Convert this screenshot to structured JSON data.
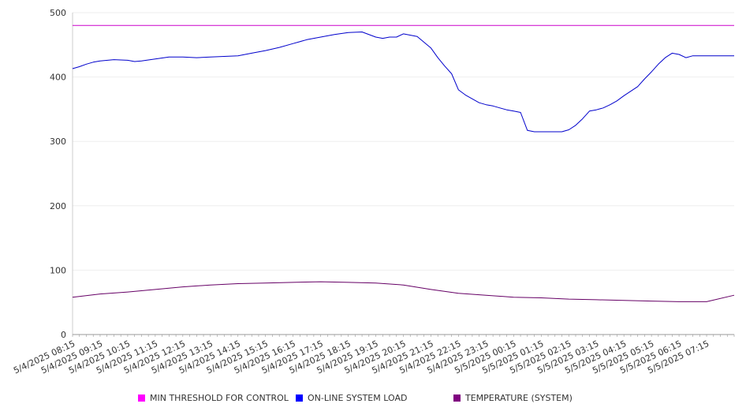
{
  "chart_data": {
    "type": "line",
    "title": "",
    "xlabel": "",
    "ylabel": "",
    "ylim": [
      0,
      500
    ],
    "yticks": [
      0,
      100,
      200,
      300,
      400,
      500
    ],
    "grid": true,
    "legend_position": "bottom",
    "x_tick_labels": [
      "5/4/2025 08:15",
      "5/4/2025 09:15",
      "5/4/2025 10:15",
      "5/4/2025 11:15",
      "5/4/2025 12:15",
      "5/4/2025 13:15",
      "5/4/2025 14:15",
      "5/4/2025 15:15",
      "5/4/2025 16:15",
      "5/4/2025 17:15",
      "5/4/2025 18:15",
      "5/4/2025 19:15",
      "5/4/2025 20:15",
      "5/4/2025 21:15",
      "5/4/2025 22:15",
      "5/4/2025 23:15",
      "5/5/2025 00:15",
      "5/5/2025 01:15",
      "5/5/2025 02:15",
      "5/5/2025 03:15",
      "5/5/2025 04:15",
      "5/5/2025 05:15",
      "5/5/2025 06:15",
      "5/5/2025 07:15"
    ],
    "x_hours_range": [
      0,
      24
    ],
    "series": [
      {
        "name": "MIN THRESHOLD FOR CONTROL",
        "color": "#cc00cc",
        "legend_color": "#ff00ff",
        "x": [
          0,
          24
        ],
        "values": [
          480,
          480
        ]
      },
      {
        "name": "ON-LINE SYSTEM LOAD",
        "color": "#0000cc",
        "legend_color": "#0000ff",
        "x": [
          0,
          0.25,
          0.5,
          0.75,
          1,
          1.5,
          2,
          2.25,
          2.5,
          3,
          3.5,
          4,
          4.5,
          5,
          5.5,
          6,
          6.5,
          7,
          7.5,
          8,
          8.5,
          9,
          9.5,
          10,
          10.5,
          11,
          11.25,
          11.5,
          11.75,
          12,
          12.5,
          13,
          13.25,
          13.5,
          13.75,
          14,
          14.25,
          14.5,
          14.75,
          15,
          15.25,
          15.5,
          15.75,
          16,
          16.25,
          16.5,
          16.75,
          17,
          17.25,
          17.5,
          17.75,
          18,
          18.25,
          18.5,
          18.75,
          19,
          19.25,
          19.5,
          19.75,
          20,
          20.25,
          20.5,
          20.75,
          21,
          21.25,
          21.5,
          21.75,
          22,
          22.25,
          22.5,
          22.75,
          23,
          23.25,
          23.5,
          23.75,
          24
        ],
        "values": [
          413,
          416,
          420,
          423,
          425,
          427,
          426,
          424,
          425,
          428,
          431,
          431,
          430,
          431,
          432,
          433,
          437,
          441,
          446,
          452,
          458,
          462,
          466,
          469,
          470,
          462,
          460,
          462,
          462,
          467,
          463,
          445,
          430,
          417,
          405,
          380,
          372,
          366,
          360,
          357,
          355,
          352,
          349,
          347,
          345,
          317,
          315,
          315,
          315,
          315,
          315,
          318,
          325,
          335,
          347,
          349,
          352,
          357,
          363,
          371,
          378,
          385,
          397,
          408,
          420,
          430,
          437,
          435,
          430,
          433,
          433,
          433,
          433,
          433,
          433,
          433
        ]
      },
      {
        "name": "TEMPERATURE (SYSTEM)",
        "color": "#660066",
        "legend_color": "#800080",
        "x": [
          0,
          1,
          2,
          3,
          4,
          5,
          6,
          7,
          8,
          9,
          10,
          11,
          12,
          13,
          14,
          15,
          16,
          17,
          18,
          19,
          20,
          21,
          22,
          23,
          24
        ],
        "values": [
          58,
          63,
          66,
          70,
          74,
          77,
          79,
          80,
          81,
          82,
          81,
          80,
          77,
          70,
          64,
          61,
          58,
          57,
          55,
          54,
          53,
          52,
          51,
          51,
          61
        ]
      }
    ]
  }
}
